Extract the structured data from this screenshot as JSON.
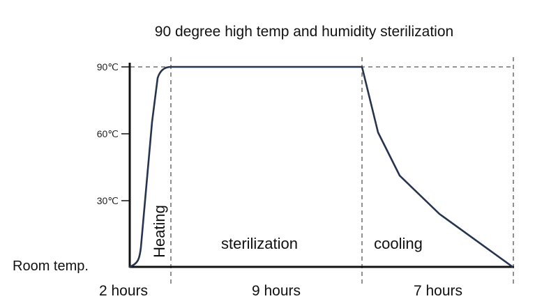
{
  "title": "90 degree high temp and humidity sterilization",
  "y_axis": {
    "ticks": [
      "90℃",
      "60℃",
      "30℃"
    ],
    "baseline_label": "Room temp."
  },
  "phases": [
    {
      "label": "Heating",
      "duration": "2 hours"
    },
    {
      "label": "sterilization",
      "duration": "9 hours"
    },
    {
      "label": "cooling",
      "duration": "7 hours"
    }
  ],
  "colors": {
    "curve": "#26344f",
    "axis": "#111111",
    "guide": "#555555"
  }
}
